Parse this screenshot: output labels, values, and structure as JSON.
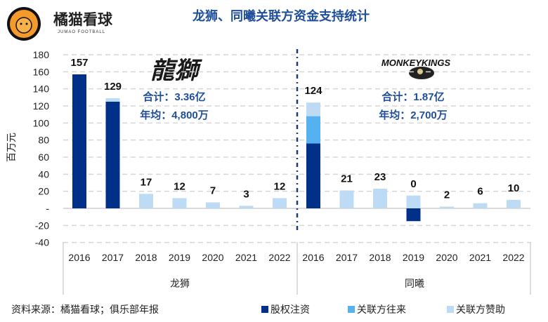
{
  "header": {
    "brand_name": "橘猫看球",
    "brand_sub": "JUMAO FOOTBALL"
  },
  "chart_data": {
    "type": "bar",
    "stacked": true,
    "title": "龙狮、同曦关联方资金支持统计",
    "ylabel": "百万元",
    "ylim": [
      -40,
      180
    ],
    "yticks": [
      -40,
      -20,
      0,
      20,
      40,
      60,
      80,
      100,
      120,
      140,
      160,
      180
    ],
    "ytick_labels": [
      "-40",
      "-20",
      "-",
      "20",
      "40",
      "60",
      "80",
      "100",
      "120",
      "140",
      "160",
      "180"
    ],
    "grid": true,
    "groups": [
      {
        "name": "龙狮",
        "categories": [
          "2016",
          "2017",
          "2018",
          "2019",
          "2020",
          "2021",
          "2022"
        ],
        "series": {
          "股权注资": [
            157,
            125,
            0,
            0,
            0,
            0,
            0
          ],
          "关联方往来": [
            0,
            0,
            0,
            0,
            0,
            0,
            0
          ],
          "关联方赞助": [
            0,
            4,
            17,
            12,
            7,
            3,
            12
          ]
        },
        "totals": [
          157,
          129,
          17,
          12,
          7,
          3,
          12
        ],
        "annotation": [
          "合计：3.36亿",
          "年均：4,800万"
        ]
      },
      {
        "name": "同曦",
        "categories": [
          "2016",
          "2017",
          "2018",
          "2019",
          "2020",
          "2021",
          "2022"
        ],
        "series": {
          "股权注资": [
            76,
            0,
            0,
            -15,
            0,
            0,
            0
          ],
          "关联方往来": [
            32,
            0,
            0,
            0,
            0,
            0,
            0
          ],
          "关联方赞助": [
            16,
            21,
            23,
            15,
            2,
            6,
            10
          ]
        },
        "totals": [
          124,
          21,
          23,
          0,
          2,
          6,
          10
        ],
        "annotation": [
          "合计：1.87亿",
          "年均：2,700万"
        ]
      }
    ],
    "series": [
      {
        "name": "股权注资",
        "color": "#003087"
      },
      {
        "name": "关联方往来",
        "color": "#56B1F0"
      },
      {
        "name": "关联方赞助",
        "color": "#BDDBF5"
      }
    ],
    "legend_position": "bottom-right"
  },
  "footer": {
    "source": "资料来源：橘猫看球；俱乐部年报"
  },
  "logos": {
    "longlions": "LONG LIONS",
    "monkeykings": "NANJING MONKEY KINGS"
  }
}
